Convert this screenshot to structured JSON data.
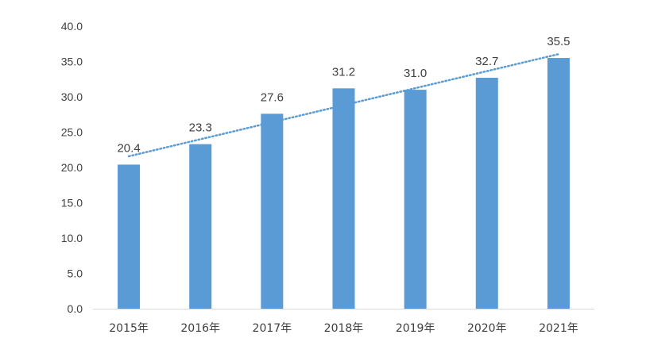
{
  "chart_data": {
    "type": "bar",
    "categories": [
      "2015年",
      "2016年",
      "2017年",
      "2018年",
      "2019年",
      "2020年",
      "2021年"
    ],
    "values": [
      20.4,
      23.3,
      27.6,
      31.2,
      31.0,
      32.7,
      35.5
    ],
    "data_labels": [
      "20.4",
      "23.3",
      "27.6",
      "31.2",
      "31.0",
      "32.7",
      "35.5"
    ],
    "ylim": [
      0,
      40
    ],
    "yticks": [
      "0.0",
      "5.0",
      "10.0",
      "15.0",
      "20.0",
      "25.0",
      "30.0",
      "35.0",
      "40.0"
    ],
    "trendline": {
      "type": "linear",
      "style": "dotted"
    },
    "grid": false,
    "legend": "none",
    "title": "",
    "xlabel": "",
    "ylabel": ""
  },
  "colors": {
    "bar": "#5b9bd5",
    "trendline": "#5b9bd5",
    "axis": "#d9d9d9",
    "text": "#404040"
  }
}
